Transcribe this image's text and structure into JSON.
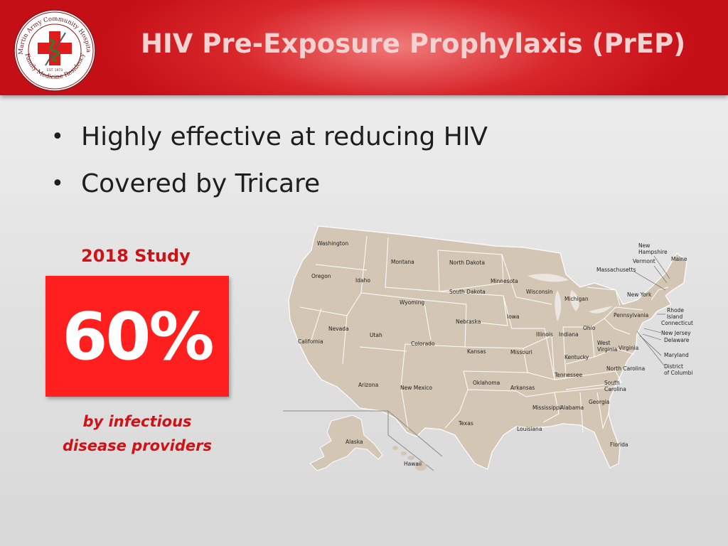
{
  "header": {
    "title": "HIV Pre-Exposure Prophylaxis (PrEP)",
    "logo": {
      "text_top": "Martin Army Community Hospital",
      "text_bottom": "Family Medicine Residency",
      "est": "EST. 1973",
      "icon": "red-cross-caduceus-logo"
    }
  },
  "bullets": [
    "Highly effective at reducing HIV",
    "Covered by Tricare"
  ],
  "stat": {
    "label": "2018 Study",
    "value": "60%",
    "caption_line1": "by infectious",
    "caption_line2": "disease providers"
  },
  "map": {
    "states": {
      "washington": "Washington",
      "oregon": "Oregon",
      "california": "California",
      "idaho": "Idaho",
      "nevada": "Nevada",
      "montana": "Montana",
      "wyoming": "Wyoming",
      "utah": "Utah",
      "arizona": "Arizona",
      "colorado": "Colorado",
      "new_mexico": "New Mexico",
      "north_dakota": "North Dakota",
      "south_dakota": "South Dakota",
      "nebraska": "Nebraska",
      "kansas": "Kansas",
      "oklahoma": "Oklahoma",
      "texas": "Texas",
      "minnesota": "Minnesota",
      "iowa": "Iowa",
      "missouri": "Missouri",
      "arkansas": "Arkansas",
      "louisiana": "Louisiana",
      "wisconsin": "Wisconsin",
      "illinois": "Illinois",
      "michigan": "Michigan",
      "indiana": "Indiana",
      "ohio": "Ohio",
      "kentucky": "Kentucky",
      "tennessee": "Tennessee",
      "mississippi": "Mississippi",
      "alabama": "Alabama",
      "georgia": "Georgia",
      "florida": "Florida",
      "south_carolina_1": "South",
      "south_carolina_2": "Carolina",
      "north_carolina": "North Carolina",
      "west_virginia_1": "West",
      "west_virginia_2": "Virginia",
      "virginia": "Virginia",
      "pennsylvania": "Pennsylvania",
      "new_york": "New York",
      "vermont": "Vermont",
      "new_hampshire_1": "New",
      "new_hampshire_2": "Hampshire",
      "maine": "Maine",
      "massachusetts": "Massachusetts",
      "rhode_island_1": "Rhode",
      "rhode_island_2": "Island",
      "connecticut": "Connecticut",
      "new_jersey": "New Jersey",
      "delaware": "Delaware",
      "maryland": "Maryland",
      "dc_1": "District",
      "dc_2": "of Columbi",
      "alaska": "Alaska",
      "hawaii": "Hawaii"
    },
    "land_color": "#d3c6b4",
    "border_color": "#ffffff"
  },
  "colors": {
    "header_red": "#c50f17",
    "title_text": "#f3d2d2",
    "accent_red": "#d01217",
    "box_red": "#ff1f1f"
  }
}
